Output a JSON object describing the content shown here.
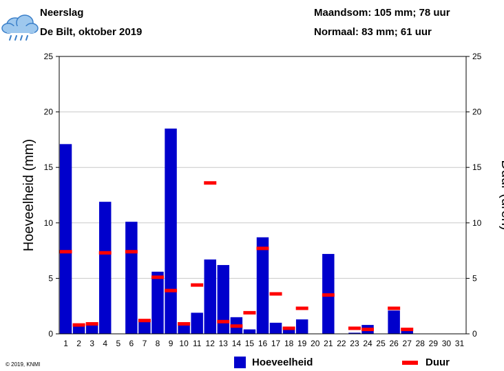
{
  "header": {
    "title": "Neerslag",
    "subtitle": "De Bilt, oktober 2019",
    "sum": "Maandsom: 105 mm; 78 uur",
    "normal": "Normaal: 83 mm; 61 uur"
  },
  "icon": "rain-cloud-icon",
  "copyright": "© 2019, KNMI",
  "colors": {
    "amount": "#0000cc",
    "duration": "#ff0000"
  },
  "chart_data": {
    "type": "bar",
    "ylabel": "Hoeveelheid (mm)",
    "y2label": "Duur (uren)",
    "ylim": [
      0,
      25
    ],
    "y2lim": [
      0,
      25
    ],
    "yticks": [
      0,
      5,
      10,
      15,
      20,
      25
    ],
    "grid": true,
    "legend": "bottom",
    "categories": [
      "1",
      "2",
      "3",
      "4",
      "5",
      "6",
      "7",
      "8",
      "9",
      "10",
      "11",
      "12",
      "13",
      "14",
      "15",
      "16",
      "17",
      "18",
      "19",
      "20",
      "21",
      "22",
      "23",
      "24",
      "25",
      "26",
      "27",
      "28",
      "29",
      "30",
      "31"
    ],
    "series": [
      {
        "name": "Hoeveelheid",
        "type": "bar",
        "values": [
          17.1,
          0.9,
          0.8,
          11.9,
          0,
          10.1,
          1.1,
          5.6,
          18.5,
          0.8,
          1.9,
          6.7,
          6.2,
          1.5,
          0.4,
          8.7,
          1.0,
          0.6,
          1.3,
          0,
          7.2,
          0,
          0.1,
          0.8,
          0,
          2.1,
          0.3,
          0,
          0,
          0,
          0
        ]
      },
      {
        "name": "Duur",
        "type": "marker",
        "values": [
          7.4,
          0.8,
          0.9,
          7.3,
          null,
          7.4,
          1.2,
          5.1,
          3.9,
          0.9,
          4.4,
          13.6,
          1.1,
          0.7,
          1.9,
          7.7,
          3.6,
          0.5,
          2.3,
          null,
          3.5,
          null,
          0.5,
          0.4,
          null,
          2.3,
          0.4,
          null,
          null,
          null,
          null
        ]
      }
    ]
  }
}
